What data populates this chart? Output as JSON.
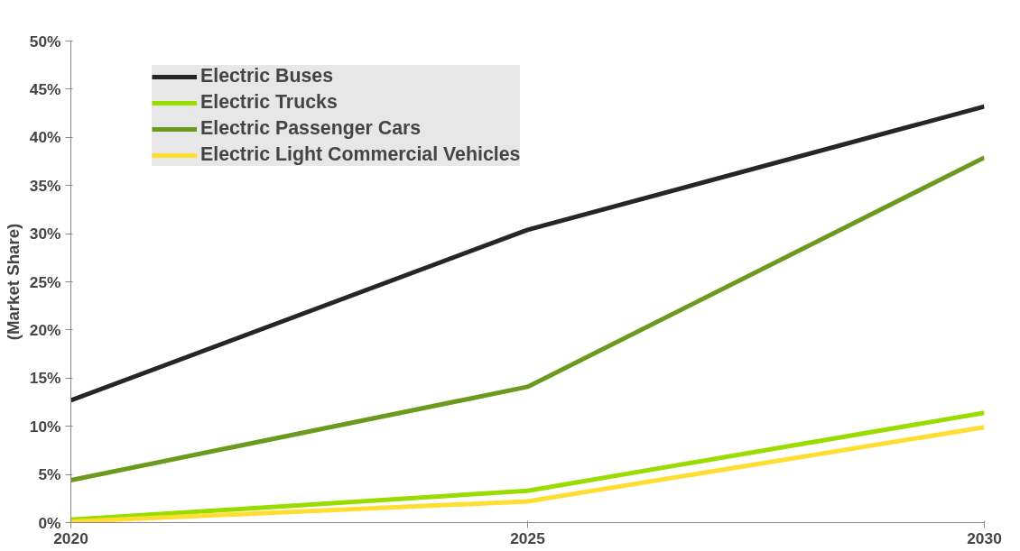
{
  "chart_data": {
    "type": "line",
    "ylabel": "(Market Share)",
    "x": [
      2020,
      2025,
      2030
    ],
    "series": [
      {
        "name": "Electric Buses",
        "color": "#262626",
        "values": [
          12.7,
          30.4,
          43.2
        ]
      },
      {
        "name": "Electric Trucks",
        "color": "#99dd00",
        "values": [
          0.3,
          3.3,
          11.4
        ]
      },
      {
        "name": "Electric Passenger Cars",
        "color": "#6b9a1f",
        "values": [
          4.4,
          14.1,
          37.9
        ]
      },
      {
        "name": "Electric Light Commercial Vehicles",
        "color": "#ffdd33",
        "values": [
          0.1,
          2.2,
          9.9
        ]
      }
    ],
    "xlim": [
      2020,
      2030
    ],
    "xticks": [
      2020,
      2025,
      2030
    ],
    "ylim": [
      0,
      50
    ],
    "yticks": [
      {
        "value": 0,
        "label": "0%"
      },
      {
        "value": 5,
        "label": "5%"
      },
      {
        "value": 10,
        "label": "10%"
      },
      {
        "value": 15,
        "label": "15%"
      },
      {
        "value": 20,
        "label": "20%"
      },
      {
        "value": 25,
        "label": "25%"
      },
      {
        "value": 30,
        "label": "30%"
      },
      {
        "value": 35,
        "label": "35%"
      },
      {
        "value": 40,
        "label": "40%"
      },
      {
        "value": 45,
        "label": "45%"
      },
      {
        "value": 50,
        "label": "50%"
      }
    ],
    "grid": false,
    "legend": "top left",
    "marker": "none",
    "line_style": "solid"
  }
}
